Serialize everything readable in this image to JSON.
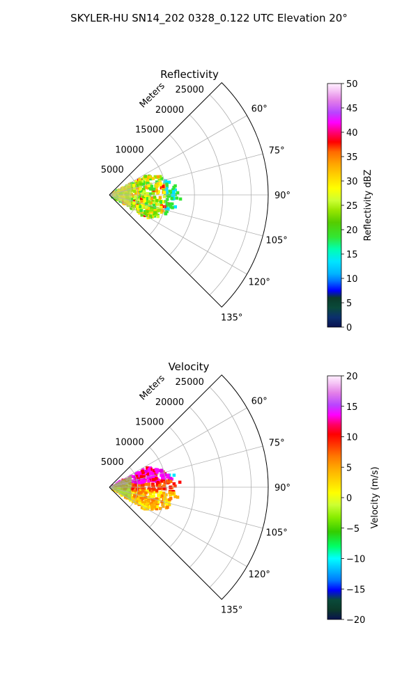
{
  "figure": {
    "title": "SKYLER-HU  SN14_202  0328_0.122 UTC Elevation 20°"
  },
  "chart_data": [
    {
      "type": "heatmap",
      "subtype": "polar-sector",
      "title": "Reflectivity",
      "range_label": "Meters",
      "range_ticks": [
        "5000",
        "10000",
        "15000",
        "20000",
        "25000"
      ],
      "range_values": [
        5000,
        10000,
        15000,
        20000,
        25000
      ],
      "rlim": [
        0,
        28000
      ],
      "azimuth_ticks": [
        "60°",
        "75°",
        "90°",
        "105°",
        "120°",
        "135°"
      ],
      "azimuth_values": [
        60,
        75,
        90,
        105,
        120,
        135
      ],
      "azimuth_range": [
        45,
        135
      ],
      "grid": true,
      "colorbar": {
        "label": "Reflectivity dBZ",
        "ticks": [
          "0",
          "5",
          "10",
          "15",
          "20",
          "25",
          "30",
          "35",
          "40",
          "45",
          "50"
        ],
        "range": [
          0,
          50
        ]
      },
      "echo_extent_m": {
        "max_range": 12500,
        "azimuth_min": 62,
        "azimuth_max": 122
      },
      "colors": {
        "low": "#0a1a5a",
        "mid": "#00e5e5",
        "high": "#ff0000",
        "max": "#fff0ff"
      }
    },
    {
      "type": "heatmap",
      "subtype": "polar-sector",
      "title": "Velocity",
      "range_label": "Meters",
      "range_ticks": [
        "5000",
        "10000",
        "15000",
        "20000",
        "25000"
      ],
      "range_values": [
        5000,
        10000,
        15000,
        20000,
        25000
      ],
      "rlim": [
        0,
        28000
      ],
      "azimuth_ticks": [
        "60°",
        "75°",
        "90°",
        "105°",
        "120°",
        "135°"
      ],
      "azimuth_values": [
        60,
        75,
        90,
        105,
        120,
        135
      ],
      "azimuth_range": [
        45,
        135
      ],
      "grid": true,
      "colorbar": {
        "label": "Velocity (m/s)",
        "ticks": [
          "−20",
          "−15",
          "−10",
          "−5",
          "0",
          "5",
          "10",
          "15",
          "20"
        ],
        "range": [
          -20,
          20
        ]
      },
      "echo_extent_m": {
        "max_range": 12500,
        "azimuth_min": 62,
        "azimuth_max": 122
      },
      "colors": {
        "low": "#0a1a5a",
        "mid": "#ffee00",
        "high": "#ff0000",
        "max": "#fff0ff"
      }
    }
  ]
}
